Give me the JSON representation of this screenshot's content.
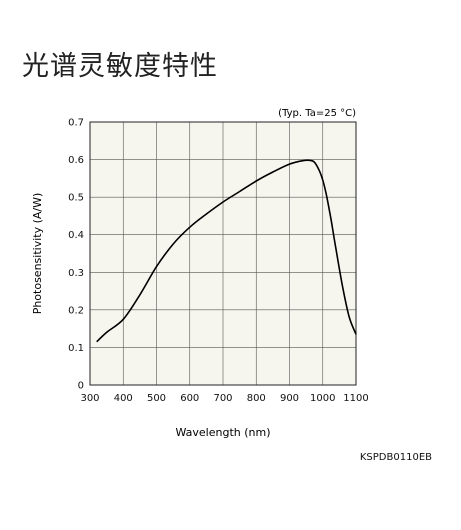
{
  "page": {
    "title": "光谱灵敏度特性",
    "code": "KSPDB0110EB"
  },
  "chart_data": {
    "type": "line",
    "annotation": "(Typ. Ta=25 °C)",
    "xlabel": "Wavelength (nm)",
    "ylabel": "Photosensitivity (A/W)",
    "xlim": [
      300,
      1100
    ],
    "ylim": [
      0,
      0.7
    ],
    "xticks": [
      300,
      400,
      500,
      600,
      700,
      800,
      900,
      1000,
      1100
    ],
    "yticks": [
      0,
      0.1,
      0.2,
      0.3,
      0.4,
      0.5,
      0.6,
      0.7
    ],
    "ytick_labels": [
      "0",
      "0.1",
      "0.2",
      "0.3",
      "0.4",
      "0.5",
      "0.6",
      "0.7"
    ],
    "grid": true,
    "background": "#f6f6ef",
    "line_color": "#000000",
    "series": [
      {
        "x": [
          320,
          350,
          400,
          450,
          500,
          550,
          600,
          650,
          700,
          750,
          800,
          850,
          900,
          940,
          960,
          975,
          990,
          1000,
          1010,
          1025,
          1040,
          1060,
          1080,
          1100
        ],
        "y": [
          0.115,
          0.14,
          0.175,
          0.24,
          0.315,
          0.375,
          0.42,
          0.455,
          0.487,
          0.515,
          0.543,
          0.567,
          0.588,
          0.597,
          0.598,
          0.593,
          0.57,
          0.545,
          0.51,
          0.44,
          0.36,
          0.26,
          0.18,
          0.135
        ]
      }
    ]
  }
}
